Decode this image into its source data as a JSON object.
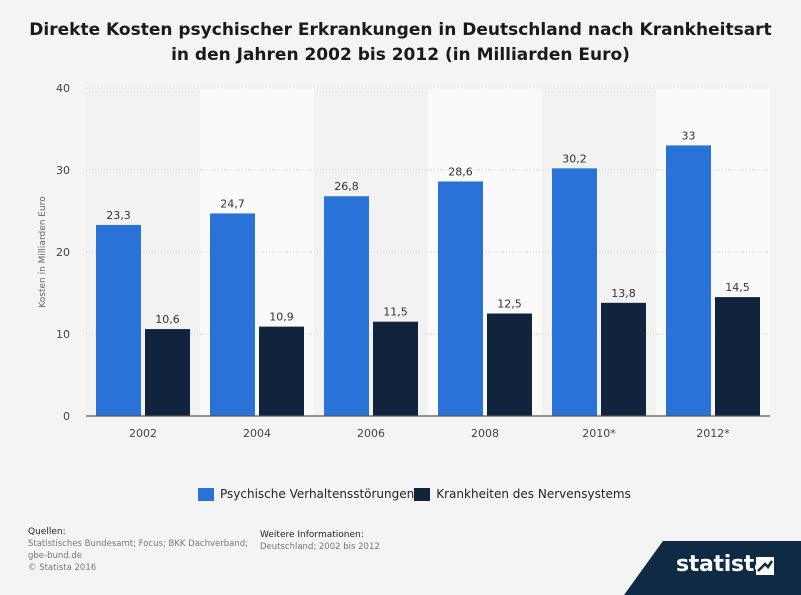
{
  "title_line1": "Direkte Kosten psychischer Erkrankungen in Deutschland nach Krankheitsart",
  "title_line2": "in den Jahren 2002 bis 2012 (in Milliarden Euro)",
  "chart_data": {
    "type": "bar",
    "categories": [
      "2002",
      "2004",
      "2006",
      "2008",
      "2010*",
      "2012*"
    ],
    "series": [
      {
        "name": "Psychische Verhaltensstörungen",
        "values": [
          23.3,
          24.7,
          26.8,
          28.6,
          30.2,
          33
        ],
        "labels": [
          "23,3",
          "24,7",
          "26,8",
          "28,6",
          "30,2",
          "33"
        ],
        "color": "#2872d8"
      },
      {
        "name": "Krankheiten des Nervensystems",
        "values": [
          10.6,
          10.9,
          11.5,
          12.5,
          13.8,
          14.5
        ],
        "labels": [
          "10,6",
          "10,9",
          "11,5",
          "12,5",
          "13,8",
          "14,5"
        ],
        "color": "#10253d"
      }
    ],
    "ylabel": "Kosten in Milliarden Euro",
    "ylim": [
      0,
      40
    ],
    "yticks": [
      "0",
      "10",
      "20",
      "30",
      "40"
    ],
    "grid": true,
    "legend": "bottom"
  },
  "footer": {
    "sources_heading": "Quellen:",
    "sources_line1": "Statistisches Bundesamt; Focus; BKK Dachverband;",
    "sources_line2": "gbe-bund.de",
    "sources_line3": "© Statista 2016",
    "info_heading": "Weitere Informationen:",
    "info_text": "Deutschland; 2002 bis 2012"
  },
  "brand": "statista"
}
